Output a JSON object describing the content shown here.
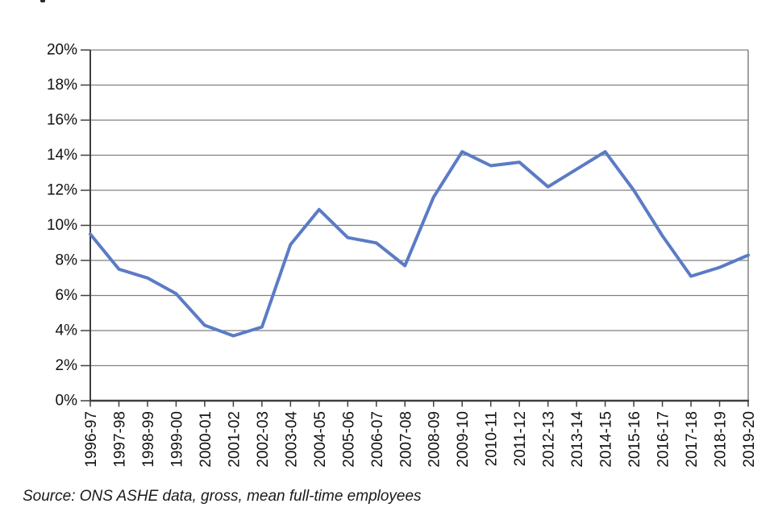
{
  "chart_data": {
    "type": "line",
    "categories": [
      "1996-97",
      "1997-98",
      "1998-99",
      "1999-00",
      "2000-01",
      "2001-02",
      "2002-03",
      "2003-04",
      "2004-05",
      "2005-06",
      "2006-07",
      "2007-08",
      "2008-09",
      "2009-10",
      "2010-11",
      "2011-12",
      "2012-13",
      "2013-14",
      "2014-15",
      "2015-16",
      "2016-17",
      "2017-18",
      "2018-19",
      "2019-20"
    ],
    "values": [
      9.5,
      7.5,
      7.0,
      6.1,
      4.3,
      3.7,
      4.2,
      8.9,
      10.9,
      9.3,
      9.0,
      7.7,
      11.6,
      14.2,
      13.4,
      13.6,
      12.2,
      13.2,
      14.2,
      12.0,
      9.4,
      7.1,
      7.6,
      8.3
    ],
    "title": "",
    "xlabel": "",
    "ylabel": "",
    "ylim": [
      0,
      20
    ],
    "ytick_step": 2,
    "ytick_labels": [
      "0%",
      "2%",
      "4%",
      "6%",
      "8%",
      "10%",
      "12%",
      "14%",
      "16%",
      "18%",
      "20%"
    ],
    "grid": true,
    "legend": "none",
    "line_color": "#5B7BC5",
    "grid_color": "#808080",
    "axis_color": "#3F3F3F"
  },
  "footer": {
    "source": "Source: ONS ASHE data, gross, mean full-time employees"
  }
}
